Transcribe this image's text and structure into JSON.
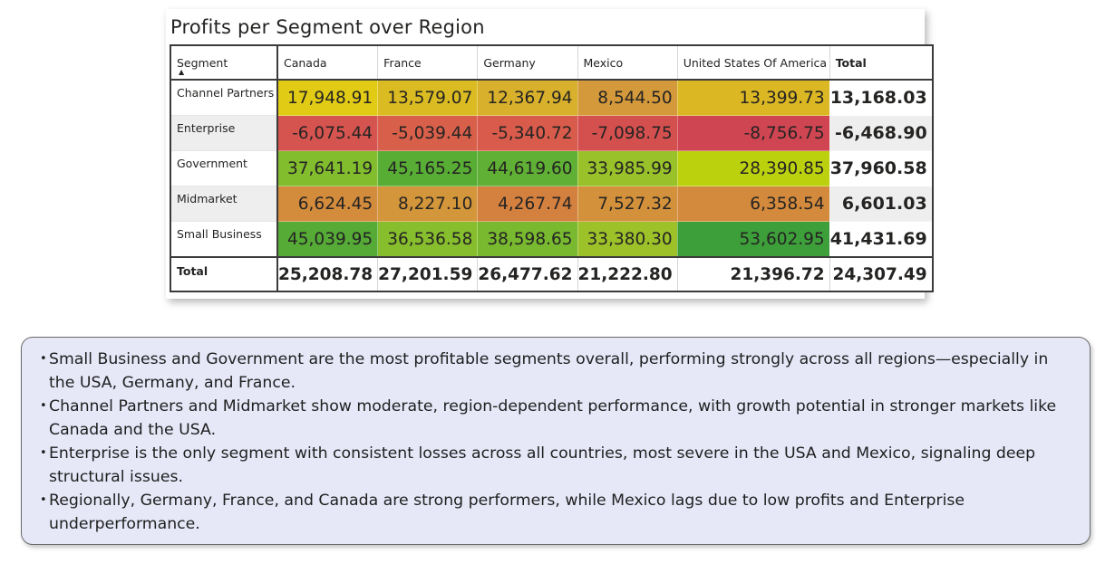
{
  "chart_data": {
    "type": "table",
    "title": "Profits per Segment over Region",
    "row_header": "Segment",
    "sort_indicator": "▲",
    "columns": [
      "Canada",
      "France",
      "Germany",
      "Mexico",
      "United States Of America"
    ],
    "total_label": "Total",
    "rows": [
      {
        "label": "Channel Partners",
        "cells": [
          "17,948.91",
          "13,579.07",
          "12,367.94",
          "8,544.50",
          "13,399.73"
        ],
        "colors": [
          "#e2cb15",
          "#dbbb22",
          "#d8b02b",
          "#d3993a",
          "#dbb723"
        ],
        "total": "13,168.03"
      },
      {
        "label": "Enterprise",
        "cells": [
          "-6,075.44",
          "-5,039.44",
          "-5,340.72",
          "-7,098.75",
          "-8,756.75"
        ],
        "colors": [
          "#d6544f",
          "#d8604a",
          "#d85b4b",
          "#d4504f",
          "#cf4552"
        ],
        "total": "-6,468.90"
      },
      {
        "label": "Government",
        "cells": [
          "37,641.19",
          "45,165.25",
          "44,619.60",
          "33,985.99",
          "28,390.85"
        ],
        "colors": [
          "#82bd2e",
          "#58ad35",
          "#5fb034",
          "#99c12a",
          "#bcd10e"
        ],
        "total": "37,960.58"
      },
      {
        "label": "Midmarket",
        "cells": [
          "6,624.45",
          "8,227.10",
          "4,267.74",
          "7,527.32",
          "6,358.54"
        ],
        "colors": [
          "#d38b3c",
          "#d3963b",
          "#d4803f",
          "#d3913c",
          "#d38a3d"
        ],
        "total": "6,601.03"
      },
      {
        "label": "Small Business",
        "cells": [
          "45,039.95",
          "36,536.58",
          "38,598.65",
          "33,380.30",
          "53,602.95"
        ],
        "colors": [
          "#55ab36",
          "#87be2d",
          "#78b930",
          "#9dc229",
          "#3d9f3a"
        ],
        "total": "41,431.69"
      }
    ],
    "column_totals": [
      "25,208.78",
      "27,201.59",
      "26,477.62",
      "21,222.80",
      "21,396.72"
    ],
    "grand_total": "24,307.49"
  },
  "insights": [
    "Small Business and Government are the most profitable segments overall, performing strongly across all regions—especially in the USA, Germany, and France.",
    "Channel Partners and Midmarket show moderate, region-dependent performance, with growth potential in stronger markets like Canada and the USA.",
    "Enterprise is the only segment with consistent losses across all countries, most severe in the USA and Mexico, signaling deep structural issues.",
    "Regionally, Germany, France, and Canada are strong performers, while Mexico lags due to low profits and Enterprise underperformance."
  ]
}
